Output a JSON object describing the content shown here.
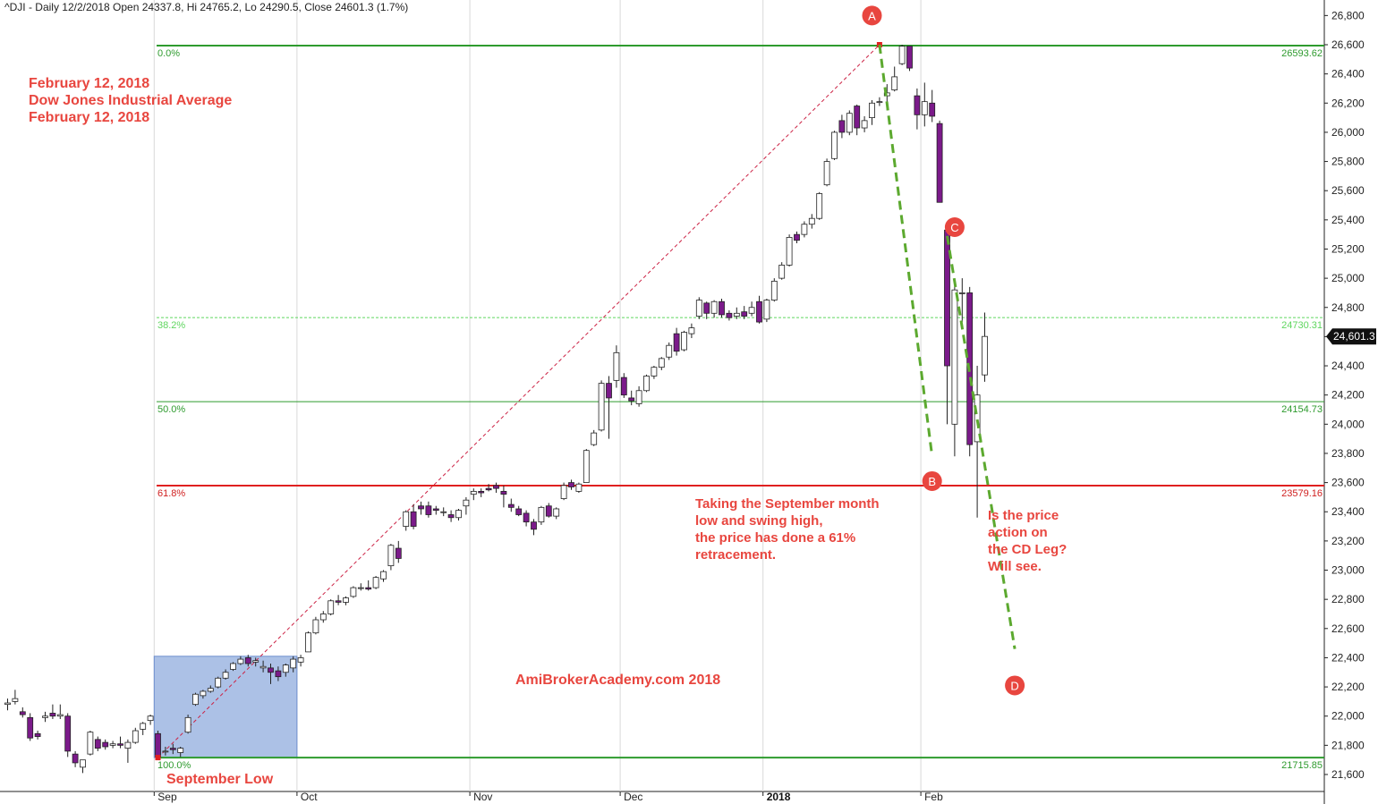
{
  "header": "^DJI - Daily 12/2/2018 Open 24337.8, Hi 24765.2, Lo 24290.5, Close 24601.3 (1.7%)",
  "colors": {
    "bull_fill": "#ffffff",
    "bear_fill": "#7b1a8a",
    "candle_stroke": "#222222",
    "fib_main": "#2e9b2e",
    "fib_382": "#5fd65f",
    "fib_618": "#e02020",
    "fib_text": "#2e9b2e",
    "fib_618_text": "#d02020",
    "trend_dashed": "#5ca92f",
    "ref_line": "#cc2244",
    "box": "#7f9fd8",
    "marker": "#e8463f",
    "annotation": "#e8463f",
    "last_price_bg": "#111111"
  },
  "annotations": {
    "title_block": [
      "February 12, 2018",
      "Dow Jones Industrial Average",
      "February 12, 2018"
    ],
    "retracement_note": [
      "Taking the September month",
      "low and swing high,",
      "the price has done a 61%",
      "retracement."
    ],
    "cd_note": [
      "Is the price",
      "action on",
      "the CD Leg?",
      "Will see."
    ],
    "watermark": "AmiBrokerAcademy.com  2018",
    "september_low": "September Low",
    "last_price_label": "24,601.3"
  },
  "chart_data": {
    "type": "candlestick",
    "title": "^DJI - Daily 12/2/2018 Open 24337.8, Hi 24765.2, Lo 24290.5, Close 24601.3 (1.7%)",
    "ylim": [
      21500,
      26850
    ],
    "y_ticks": [
      21600,
      21800,
      22000,
      22200,
      22400,
      22600,
      22800,
      23000,
      23200,
      23400,
      23600,
      23800,
      24000,
      24200,
      24400,
      24600,
      24800,
      25000,
      25200,
      25400,
      25600,
      25800,
      26000,
      26200,
      26400,
      26600,
      26800
    ],
    "y_tick_labels": [
      "21,600",
      "21,800",
      "22,000",
      "22,200",
      "22,400",
      "22,600",
      "22,800",
      "23,000",
      "23,200",
      "23,400",
      "23,600",
      "23,800",
      "24,000",
      "24,200",
      "24,400",
      "24,600",
      "24,800",
      "25,000",
      "25,200",
      "25,400",
      "25,600",
      "25,800",
      "26,000",
      "26,200",
      "26,400",
      "26,600",
      "26,800"
    ],
    "x_ticks": [
      {
        "label": "Sep",
        "bar": 20,
        "bold": false
      },
      {
        "label": "Oct",
        "bar": 39,
        "bold": false
      },
      {
        "label": "Nov",
        "bar": 62,
        "bold": false
      },
      {
        "label": "Dec",
        "bar": 82,
        "bold": false
      },
      {
        "label": "2018",
        "bar": 101,
        "bold": true
      },
      {
        "label": "Feb",
        "bar": 122,
        "bold": false
      }
    ],
    "fib_levels": [
      {
        "pct": "0.0%",
        "value": 26593.62,
        "label": "26593.62"
      },
      {
        "pct": "38.2%",
        "value": 24730.31,
        "label": "24730.31"
      },
      {
        "pct": "50.0%",
        "value": 24154.73,
        "label": "24154.73"
      },
      {
        "pct": "61.8%",
        "value": 23579.16,
        "label": "23579.16"
      },
      {
        "pct": "100.0%",
        "value": 21715.85,
        "label": "21715.85"
      }
    ],
    "last_close": 24601.3,
    "points": [
      {
        "label": "A",
        "bar": 115,
        "value": 26800
      },
      {
        "label": "B",
        "bar": 123,
        "value": 23610
      },
      {
        "label": "C",
        "bar": 126,
        "value": 25350
      },
      {
        "label": "D",
        "bar": 134,
        "value": 22210
      }
    ],
    "trend_lines": [
      {
        "from": [
          116,
          26600
        ],
        "to": [
          123,
          23780
        ]
      },
      {
        "from": [
          125,
          25290
        ],
        "to": [
          134,
          22460
        ]
      }
    ],
    "reference_line": {
      "from": [
        20,
        21715.85
      ],
      "to": [
        116,
        26600
      ]
    },
    "highlight_box": {
      "from_bar": 19.5,
      "to_bar": 38.5,
      "low": 21715.85,
      "high": 22410
    },
    "candles": [
      {
        "o": 22080,
        "h": 22120,
        "l": 22040,
        "c": 22090
      },
      {
        "o": 22100,
        "h": 22180,
        "l": 22080,
        "c": 22120
      },
      {
        "o": 22030,
        "h": 22060,
        "l": 21990,
        "c": 22010
      },
      {
        "o": 21990,
        "h": 22020,
        "l": 21830,
        "c": 21850
      },
      {
        "o": 21880,
        "h": 21900,
        "l": 21840,
        "c": 21860
      },
      {
        "o": 21990,
        "h": 22030,
        "l": 21960,
        "c": 22000
      },
      {
        "o": 22020,
        "h": 22080,
        "l": 21980,
        "c": 22000
      },
      {
        "o": 22000,
        "h": 22080,
        "l": 21980,
        "c": 22010
      },
      {
        "o": 22000,
        "h": 22020,
        "l": 21720,
        "c": 21760
      },
      {
        "o": 21740,
        "h": 21760,
        "l": 21650,
        "c": 21680
      },
      {
        "o": 21650,
        "h": 21700,
        "l": 21610,
        "c": 21700
      },
      {
        "o": 21740,
        "h": 21900,
        "l": 21730,
        "c": 21890
      },
      {
        "o": 21840,
        "h": 21860,
        "l": 21760,
        "c": 21780
      },
      {
        "o": 21820,
        "h": 21840,
        "l": 21770,
        "c": 21790
      },
      {
        "o": 21800,
        "h": 21830,
        "l": 21780,
        "c": 21810
      },
      {
        "o": 21810,
        "h": 21860,
        "l": 21780,
        "c": 21800
      },
      {
        "o": 21780,
        "h": 21840,
        "l": 21680,
        "c": 21820
      },
      {
        "o": 21820,
        "h": 21920,
        "l": 21810,
        "c": 21900
      },
      {
        "o": 21910,
        "h": 21960,
        "l": 21870,
        "c": 21950
      },
      {
        "o": 21970,
        "h": 22010,
        "l": 21940,
        "c": 22000
      },
      {
        "o": 21880,
        "h": 21900,
        "l": 21700,
        "c": 21720
      },
      {
        "o": 21760,
        "h": 21790,
        "l": 21730,
        "c": 21760
      },
      {
        "o": 21780,
        "h": 21810,
        "l": 21740,
        "c": 21770
      },
      {
        "o": 21750,
        "h": 21790,
        "l": 21720,
        "c": 21780
      },
      {
        "o": 21890,
        "h": 22010,
        "l": 21880,
        "c": 21990
      },
      {
        "o": 22080,
        "h": 22160,
        "l": 22070,
        "c": 22150
      },
      {
        "o": 22140,
        "h": 22180,
        "l": 22120,
        "c": 22170
      },
      {
        "o": 22170,
        "h": 22210,
        "l": 22160,
        "c": 22190
      },
      {
        "o": 22200,
        "h": 22270,
        "l": 22190,
        "c": 22260
      },
      {
        "o": 22260,
        "h": 22320,
        "l": 22250,
        "c": 22300
      },
      {
        "o": 22320,
        "h": 22370,
        "l": 22310,
        "c": 22360
      },
      {
        "o": 22360,
        "h": 22410,
        "l": 22350,
        "c": 22390
      },
      {
        "o": 22400,
        "h": 22420,
        "l": 22340,
        "c": 22360
      },
      {
        "o": 22370,
        "h": 22400,
        "l": 22340,
        "c": 22380
      },
      {
        "o": 22330,
        "h": 22380,
        "l": 22300,
        "c": 22340
      },
      {
        "o": 22330,
        "h": 22360,
        "l": 22220,
        "c": 22300
      },
      {
        "o": 22310,
        "h": 22340,
        "l": 22240,
        "c": 22270
      },
      {
        "o": 22300,
        "h": 22360,
        "l": 22270,
        "c": 22350
      },
      {
        "o": 22330,
        "h": 22410,
        "l": 22300,
        "c": 22390
      },
      {
        "o": 22370,
        "h": 22420,
        "l": 22340,
        "c": 22400
      },
      {
        "o": 22440,
        "h": 22580,
        "l": 22440,
        "c": 22570
      },
      {
        "o": 22570,
        "h": 22680,
        "l": 22560,
        "c": 22660
      },
      {
        "o": 22660,
        "h": 22720,
        "l": 22640,
        "c": 22700
      },
      {
        "o": 22700,
        "h": 22800,
        "l": 22690,
        "c": 22790
      },
      {
        "o": 22790,
        "h": 22830,
        "l": 22760,
        "c": 22780
      },
      {
        "o": 22780,
        "h": 22820,
        "l": 22760,
        "c": 22810
      },
      {
        "o": 22820,
        "h": 22890,
        "l": 22810,
        "c": 22880
      },
      {
        "o": 22880,
        "h": 22910,
        "l": 22860,
        "c": 22880
      },
      {
        "o": 22880,
        "h": 22930,
        "l": 22860,
        "c": 22870
      },
      {
        "o": 22880,
        "h": 22960,
        "l": 22870,
        "c": 22950
      },
      {
        "o": 22940,
        "h": 23000,
        "l": 22920,
        "c": 22990
      },
      {
        "o": 23030,
        "h": 23180,
        "l": 23000,
        "c": 23170
      },
      {
        "o": 23150,
        "h": 23200,
        "l": 23050,
        "c": 23080
      },
      {
        "o": 23300,
        "h": 23410,
        "l": 23270,
        "c": 23400
      },
      {
        "o": 23400,
        "h": 23450,
        "l": 23280,
        "c": 23300
      },
      {
        "o": 23440,
        "h": 23470,
        "l": 23380,
        "c": 23420
      },
      {
        "o": 23440,
        "h": 23470,
        "l": 23360,
        "c": 23380
      },
      {
        "o": 23420,
        "h": 23440,
        "l": 23380,
        "c": 23410
      },
      {
        "o": 23400,
        "h": 23430,
        "l": 23370,
        "c": 23400
      },
      {
        "o": 23380,
        "h": 23410,
        "l": 23330,
        "c": 23360
      },
      {
        "o": 23360,
        "h": 23420,
        "l": 23340,
        "c": 23410
      },
      {
        "o": 23440,
        "h": 23500,
        "l": 23380,
        "c": 23480
      },
      {
        "o": 23520,
        "h": 23560,
        "l": 23480,
        "c": 23540
      },
      {
        "o": 23540,
        "h": 23560,
        "l": 23500,
        "c": 23530
      },
      {
        "o": 23560,
        "h": 23590,
        "l": 23540,
        "c": 23550
      },
      {
        "o": 23580,
        "h": 23600,
        "l": 23530,
        "c": 23560
      },
      {
        "o": 23540,
        "h": 23580,
        "l": 23430,
        "c": 23520
      },
      {
        "o": 23450,
        "h": 23490,
        "l": 23400,
        "c": 23430
      },
      {
        "o": 23420,
        "h": 23440,
        "l": 23370,
        "c": 23380
      },
      {
        "o": 23390,
        "h": 23410,
        "l": 23300,
        "c": 23330
      },
      {
        "o": 23330,
        "h": 23350,
        "l": 23240,
        "c": 23280
      },
      {
        "o": 23330,
        "h": 23440,
        "l": 23310,
        "c": 23430
      },
      {
        "o": 23440,
        "h": 23460,
        "l": 23360,
        "c": 23370
      },
      {
        "o": 23370,
        "h": 23430,
        "l": 23350,
        "c": 23420
      },
      {
        "o": 23490,
        "h": 23600,
        "l": 23480,
        "c": 23580
      },
      {
        "o": 23600,
        "h": 23620,
        "l": 23550,
        "c": 23570
      },
      {
        "o": 23540,
        "h": 23600,
        "l": 23530,
        "c": 23590
      },
      {
        "o": 23600,
        "h": 23830,
        "l": 23600,
        "c": 23820
      },
      {
        "o": 23860,
        "h": 23960,
        "l": 23850,
        "c": 23940
      },
      {
        "o": 23960,
        "h": 24300,
        "l": 23950,
        "c": 24280
      },
      {
        "o": 24280,
        "h": 24330,
        "l": 23900,
        "c": 24180
      },
      {
        "o": 24300,
        "h": 24540,
        "l": 24250,
        "c": 24490
      },
      {
        "o": 24320,
        "h": 24350,
        "l": 24180,
        "c": 24200
      },
      {
        "o": 24180,
        "h": 24230,
        "l": 24130,
        "c": 24160
      },
      {
        "o": 24140,
        "h": 24260,
        "l": 24120,
        "c": 24230
      },
      {
        "o": 24230,
        "h": 24340,
        "l": 24220,
        "c": 24330
      },
      {
        "o": 24330,
        "h": 24400,
        "l": 24310,
        "c": 24390
      },
      {
        "o": 24390,
        "h": 24460,
        "l": 24370,
        "c": 24450
      },
      {
        "o": 24460,
        "h": 24560,
        "l": 24440,
        "c": 24540
      },
      {
        "o": 24620,
        "h": 24660,
        "l": 24470,
        "c": 24500
      },
      {
        "o": 24510,
        "h": 24640,
        "l": 24500,
        "c": 24630
      },
      {
        "o": 24620,
        "h": 24690,
        "l": 24590,
        "c": 24660
      },
      {
        "o": 24740,
        "h": 24870,
        "l": 24720,
        "c": 24850
      },
      {
        "o": 24830,
        "h": 24840,
        "l": 24720,
        "c": 24760
      },
      {
        "o": 24760,
        "h": 24850,
        "l": 24730,
        "c": 24840
      },
      {
        "o": 24840,
        "h": 24860,
        "l": 24730,
        "c": 24750
      },
      {
        "o": 24760,
        "h": 24780,
        "l": 24710,
        "c": 24730
      },
      {
        "o": 24740,
        "h": 24800,
        "l": 24720,
        "c": 24760
      },
      {
        "o": 24770,
        "h": 24810,
        "l": 24720,
        "c": 24740
      },
      {
        "o": 24760,
        "h": 24840,
        "l": 24740,
        "c": 24800
      },
      {
        "o": 24840,
        "h": 24880,
        "l": 24690,
        "c": 24700
      },
      {
        "o": 24720,
        "h": 24860,
        "l": 24700,
        "c": 24850
      },
      {
        "o": 24850,
        "h": 25000,
        "l": 24840,
        "c": 24980
      },
      {
        "o": 25000,
        "h": 25110,
        "l": 24990,
        "c": 25090
      },
      {
        "o": 25090,
        "h": 25300,
        "l": 25080,
        "c": 25280
      },
      {
        "o": 25300,
        "h": 25320,
        "l": 25240,
        "c": 25260
      },
      {
        "o": 25300,
        "h": 25390,
        "l": 25280,
        "c": 25370
      },
      {
        "o": 25370,
        "h": 25440,
        "l": 25340,
        "c": 25410
      },
      {
        "o": 25410,
        "h": 25590,
        "l": 25400,
        "c": 25580
      },
      {
        "o": 25640,
        "h": 25820,
        "l": 25630,
        "c": 25800
      },
      {
        "o": 25820,
        "h": 26010,
        "l": 25810,
        "c": 26000
      },
      {
        "o": 26080,
        "h": 26120,
        "l": 25960,
        "c": 26000
      },
      {
        "o": 26000,
        "h": 26150,
        "l": 25980,
        "c": 26130
      },
      {
        "o": 26180,
        "h": 26190,
        "l": 25980,
        "c": 26030
      },
      {
        "o": 26030,
        "h": 26110,
        "l": 26000,
        "c": 26080
      },
      {
        "o": 26100,
        "h": 26220,
        "l": 26050,
        "c": 26200
      },
      {
        "o": 26210,
        "h": 26240,
        "l": 26180,
        "c": 26210
      },
      {
        "o": 26250,
        "h": 26330,
        "l": 26150,
        "c": 26270
      },
      {
        "o": 26290,
        "h": 26450,
        "l": 26280,
        "c": 26380
      },
      {
        "o": 26470,
        "h": 26600,
        "l": 26460,
        "c": 26590
      },
      {
        "o": 26590,
        "h": 26590,
        "l": 26420,
        "c": 26440
      },
      {
        "o": 26250,
        "h": 26300,
        "l": 26020,
        "c": 26120
      },
      {
        "o": 26120,
        "h": 26340,
        "l": 26040,
        "c": 26210
      },
      {
        "o": 26200,
        "h": 26290,
        "l": 26070,
        "c": 26110
      },
      {
        "o": 26060,
        "h": 26080,
        "l": 25520,
        "c": 25520
      },
      {
        "o": 25330,
        "h": 25370,
        "l": 24000,
        "c": 24400
      },
      {
        "o": 24000,
        "h": 24970,
        "l": 23780,
        "c": 24920
      },
      {
        "o": 24900,
        "h": 25000,
        "l": 24700,
        "c": 24900
      },
      {
        "o": 24900,
        "h": 24940,
        "l": 23780,
        "c": 23860
      },
      {
        "o": 23880,
        "h": 24400,
        "l": 23360,
        "c": 24200
      },
      {
        "o": 24337.8,
        "h": 24765.2,
        "l": 24290.5,
        "c": 24601.3
      }
    ]
  }
}
